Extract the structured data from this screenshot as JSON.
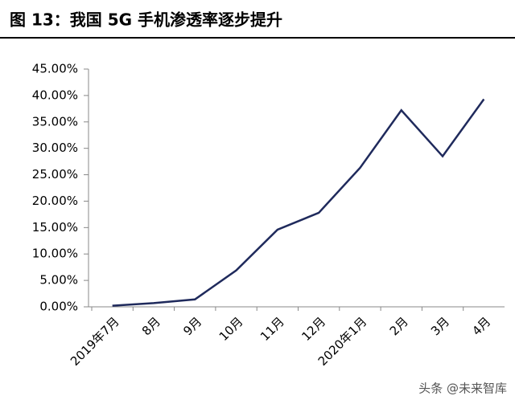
{
  "chart_data": {
    "type": "line",
    "title": "图 13：我国 5G 手机渗透率逐步提升",
    "categories": [
      "2019年7月",
      "8月",
      "9月",
      "10月",
      "11月",
      "12月",
      "2020年1月",
      "2月",
      "3月",
      "4月"
    ],
    "series": [
      {
        "name": "5G手机渗透率",
        "color": "#1f2a5c",
        "values": [
          0.2,
          0.7,
          1.4,
          6.9,
          14.6,
          17.8,
          26.3,
          37.2,
          28.5,
          39.3
        ]
      }
    ],
    "ylim": [
      0,
      45
    ],
    "yticks": [
      {
        "value": 0,
        "label": "0.00%"
      },
      {
        "value": 5,
        "label": "5.00%"
      },
      {
        "value": 10,
        "label": "10.00%"
      },
      {
        "value": 15,
        "label": "15.00%"
      },
      {
        "value": 20,
        "label": "20.00%"
      },
      {
        "value": 25,
        "label": "25.00%"
      },
      {
        "value": 30,
        "label": "30.00%"
      },
      {
        "value": 35,
        "label": "35.00%"
      },
      {
        "value": 40,
        "label": "40.00%"
      },
      {
        "value": 45,
        "label": "45.00%"
      }
    ],
    "grid": false,
    "watermark": "头条 @未来智库"
  }
}
